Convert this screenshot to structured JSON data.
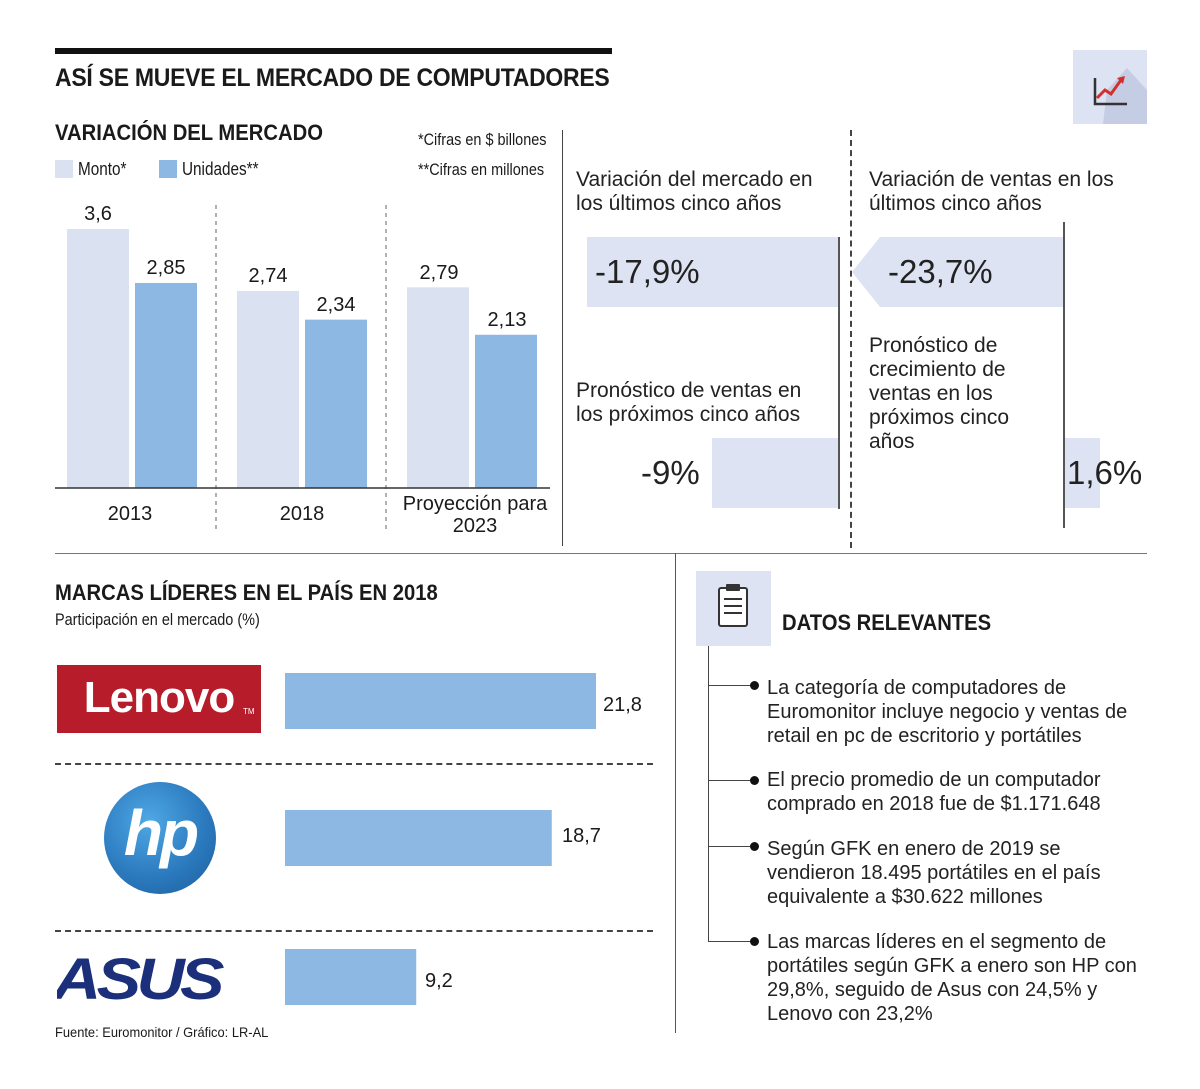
{
  "header": {
    "title": "ASÍ SE MUEVE EL MERCADO DE COMPUTADORES",
    "icon": "trend-chart-icon"
  },
  "colors": {
    "monto": "#dae2f2",
    "unidades": "#8db8e3",
    "stat_bar": "#dde3f2",
    "lenovo_red": "#b71c2a",
    "hp_blue": "#2c7bbf",
    "asus_navy": "#1b2f7a"
  },
  "chart_data": [
    {
      "type": "bar",
      "title": "VARIACIÓN DEL MERCADO",
      "notes": [
        "*Cifras en $ billones",
        "**Cifras en millones"
      ],
      "categories": [
        "2013",
        "2018",
        "Proyección para 2023"
      ],
      "series": [
        {
          "name": "Monto*",
          "values": [
            3.6,
            2.74,
            2.79
          ],
          "labels": [
            "3,6",
            "2,74",
            "2,79"
          ]
        },
        {
          "name": "Unidades**",
          "values": [
            2.85,
            2.34,
            2.13
          ],
          "labels": [
            "2,85",
            "2,34",
            "2,13"
          ]
        }
      ],
      "ylim": [
        0,
        3.6
      ]
    },
    {
      "type": "bar",
      "orientation": "horizontal",
      "title": "MARCAS LÍDERES EN EL PAÍS EN 2018",
      "subtitle": "Participación en el mercado (%)",
      "categories": [
        "Lenovo",
        "HP",
        "ASUS"
      ],
      "values": [
        21.8,
        18.7,
        9.2
      ],
      "labels": [
        "21,8",
        "18,7",
        "9,2"
      ]
    }
  ],
  "stats": {
    "market_variation": {
      "label": "Variación del mercado en los últimos cinco años",
      "value": "-17,9%"
    },
    "sales_variation": {
      "label": "Variación de ventas en los últimos cinco años",
      "value": "-23,7%"
    },
    "sales_forecast": {
      "label": "Pronóstico de ventas en los próximos cinco años",
      "value": "-9%"
    },
    "growth_forecast": {
      "label": "Pronóstico de crecimiento de ventas en los próximos cinco años",
      "value": "1,6%"
    }
  },
  "brands": {
    "lenovo_logo": "Lenovo",
    "hp_logo": "hp",
    "asus_logo": "ASUS"
  },
  "datos": {
    "title": "DATOS RELEVANTES",
    "icon": "clipboard-icon",
    "items": [
      "La categoría de computadores de Euromonitor incluye negocio y ventas de retail en pc de escritorio y portátiles",
      "El precio promedio de un computador comprado en 2018 fue de $1.171.648",
      "Según GFK en enero de 2019 se vendieron 18.495 portátiles en el país equivalente a $30.622 millones",
      "Las marcas líderes en el segmento de portátiles según GFK a enero son HP con 29,8%, seguido de Asus con 24,5% y Lenovo con 23,2%"
    ]
  },
  "source": "Fuente: Euromonitor / Gráfico: LR-AL"
}
